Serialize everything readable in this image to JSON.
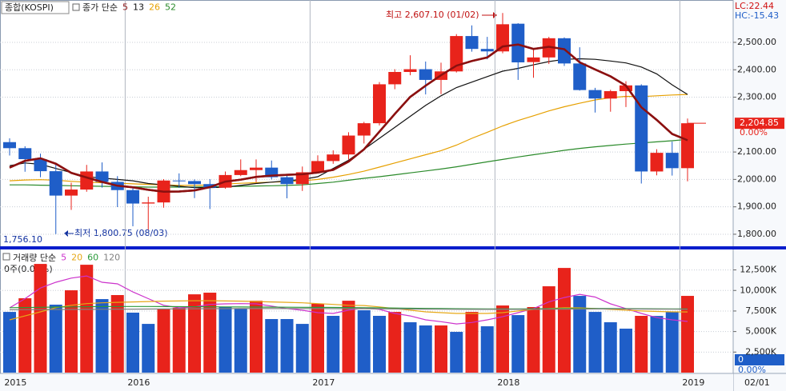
{
  "chart_data": [
    {
      "type": "candlestick",
      "title": "종합(KOSPI)",
      "ma_label": "종가 단순",
      "lc_label": "LC:22.44",
      "hc_label": "HC:-15.43",
      "high_annotation": "최고 2,607.10 (01/02)",
      "low_annotation": "최저 1,800.75 (08/03)",
      "axis_min_label": "1,756.10",
      "current_label": "2,204.85",
      "change_label": "0.00%",
      "categories": [
        "2015",
        null,
        null,
        null,
        null,
        null,
        null,
        null,
        "2016",
        null,
        null,
        null,
        null,
        null,
        null,
        null,
        null,
        null,
        null,
        null,
        "2017",
        null,
        null,
        null,
        null,
        null,
        null,
        null,
        null,
        null,
        null,
        null,
        "2018",
        null,
        null,
        null,
        null,
        null,
        null,
        null,
        null,
        null,
        null,
        null,
        "2019"
      ],
      "open": [
        2136,
        2114,
        2074,
        2030,
        1941,
        1963,
        2029,
        1991,
        1961,
        1912,
        1916,
        1996,
        1994,
        1983,
        1970,
        2016,
        2034,
        2043,
        2008,
        1983,
        2026,
        2067,
        2091,
        2160,
        2205,
        2347,
        2392,
        2402,
        2363,
        2394,
        2523,
        2476,
        2467,
        2568,
        2428,
        2445,
        2515,
        2423,
        2326,
        2295,
        2322,
        2343,
        2029,
        2097,
        2041
      ],
      "high": [
        2150,
        2121,
        2094,
        2055,
        1988,
        2053,
        2062,
        2012,
        1971,
        1937,
        2001,
        2022,
        2000,
        2001,
        2029,
        2073,
        2073,
        2069,
        2015,
        2047,
        2088,
        2106,
        2172,
        2210,
        2355,
        2402,
        2453,
        2430,
        2426,
        2530,
        2562,
        2520,
        2607.1,
        2570,
        2476,
        2520,
        2518,
        2482,
        2334,
        2327,
        2358,
        2347,
        2110,
        2138,
        2222
      ],
      "low": [
        2087,
        2028,
        2008,
        1800.75,
        1889,
        1955,
        1970,
        1899,
        1829,
        1817,
        1897,
        1969,
        1932,
        1892,
        1966,
        2012,
        1990,
        2000,
        1931,
        1958,
        2024,
        2057,
        2073,
        2131,
        2197,
        2329,
        2380,
        2310,
        2311,
        2390,
        2466,
        2438,
        2460,
        2363,
        2371,
        2421,
        2414,
        2324,
        2244,
        2247,
        2264,
        1985,
        2015,
        2014,
        1993
      ],
      "close": [
        2114,
        2074,
        2030,
        1941,
        1963,
        2029,
        1991,
        1961,
        1912,
        1916,
        1996,
        1994,
        1983,
        1970,
        2016,
        2034,
        2043,
        2008,
        1983,
        2026,
        2067,
        2091,
        2160,
        2205,
        2347,
        2392,
        2402,
        2363,
        2394,
        2523,
        2476,
        2467,
        2566,
        2427,
        2445,
        2515,
        2423,
        2326,
        2295,
        2322,
        2343,
        2029,
        2097,
        2041,
        2204.85
      ],
      "up_color": "#e8231b",
      "down_color": "#1f5ec8",
      "series": [
        {
          "name": "5",
          "color": "#8b1010",
          "values": [
            2043,
            2068,
            2077,
            2057,
            2024,
            2007,
            1991,
            1977,
            1971,
            1962,
            1955,
            1956,
            1960,
            1972,
            1992,
            1999,
            2009,
            2014,
            2017,
            2019,
            2025,
            2035,
            2065,
            2110,
            2174,
            2239,
            2301,
            2342,
            2380,
            2415,
            2432,
            2445,
            2485,
            2492,
            2476,
            2484,
            2475,
            2427,
            2401,
            2376,
            2342,
            2263,
            2217,
            2166,
            2143
          ]
        },
        {
          "name": "13",
          "color": "#111111",
          "values": [
            2050,
            2060,
            2055,
            2040,
            2025,
            2010,
            2005,
            2000,
            1995,
            1985,
            1980,
            1975,
            1970,
            1970,
            1972,
            1978,
            1985,
            1990,
            1995,
            2000,
            2010,
            2040,
            2070,
            2110,
            2150,
            2190,
            2230,
            2270,
            2305,
            2335,
            2355,
            2375,
            2395,
            2405,
            2418,
            2430,
            2438,
            2440,
            2438,
            2432,
            2425,
            2410,
            2385,
            2345,
            2310
          ]
        },
        {
          "name": "26",
          "color": "#e6a000",
          "values": [
            1995,
            1998,
            1999,
            1997,
            1993,
            1990,
            1988,
            1986,
            1984,
            1982,
            1980,
            1978,
            1978,
            1980,
            1983,
            1986,
            1988,
            1990,
            1992,
            1995,
            2000,
            2008,
            2018,
            2030,
            2045,
            2060,
            2075,
            2090,
            2105,
            2125,
            2150,
            2172,
            2195,
            2215,
            2232,
            2250,
            2265,
            2278,
            2290,
            2298,
            2303,
            2302,
            2305,
            2308,
            2310
          ]
        },
        {
          "name": "52",
          "color": "#2a8a2a",
          "values": [
            1980,
            1980,
            1979,
            1978,
            1977,
            1976,
            1975,
            1974,
            1973,
            1972,
            1972,
            1972,
            1972,
            1973,
            1974,
            1975,
            1976,
            1977,
            1978,
            1980,
            1985,
            1990,
            1997,
            2004,
            2010,
            2017,
            2024,
            2031,
            2038,
            2046,
            2055,
            2064,
            2073,
            2082,
            2090,
            2098,
            2106,
            2113,
            2119,
            2124,
            2129,
            2133,
            2137,
            2141,
            2146
          ]
        }
      ],
      "ylim": [
        1756.1,
        2654.5
      ],
      "yticks": [
        {
          "value": 1800,
          "label": "1,800.00"
        },
        {
          "value": 1900,
          "label": "1,900.00"
        },
        {
          "value": 2000,
          "label": "2,000.00"
        },
        {
          "value": 2100,
          "label": "2,100.00"
        },
        {
          "value": 2300,
          "label": "2,300.00"
        },
        {
          "value": 2400,
          "label": "2,400.00"
        },
        {
          "value": 2500,
          "label": "2,500.00"
        }
      ],
      "grid": true
    },
    {
      "type": "bar",
      "title": "거래량 단순",
      "subtitle": "0주(0.00%)",
      "current_label": "0",
      "change_label": "0.00%",
      "x_end_label": "02/01",
      "values": [
        7390,
        9050,
        13230,
        8270,
        10020,
        13130,
        8950,
        9440,
        7300,
        5930,
        7690,
        7880,
        9530,
        9730,
        7980,
        7780,
        8750,
        6520,
        6520,
        5930,
        8370,
        6910,
        8750,
        7590,
        6910,
        7390,
        6130,
        5740,
        5740,
        4960,
        7390,
        5640,
        8170,
        7000,
        7980,
        10510,
        12740,
        9340,
        7390,
        6130,
        5350,
        6910,
        6900,
        7390,
        9340
      ],
      "bar_colors": [
        "#1f5ec8",
        "#e8231b",
        "#e8231b",
        "#1f5ec8",
        "#e8231b",
        "#e8231b",
        "#1f5ec8",
        "#e8231b",
        "#1f5ec8",
        "#1f5ec8",
        "#e8231b",
        "#e8231b",
        "#e8231b",
        "#e8231b",
        "#1f5ec8",
        "#1f5ec8",
        "#e8231b",
        "#1f5ec8",
        "#1f5ec8",
        "#1f5ec8",
        "#e8231b",
        "#1f5ec8",
        "#e8231b",
        "#1f5ec8",
        "#1f5ec8",
        "#e8231b",
        "#1f5ec8",
        "#1f5ec8",
        "#e8231b",
        "#1f5ec8",
        "#e8231b",
        "#1f5ec8",
        "#e8231b",
        "#1f5ec8",
        "#e8231b",
        "#e8231b",
        "#e8231b",
        "#1f5ec8",
        "#1f5ec8",
        "#1f5ec8",
        "#1f5ec8",
        "#e8231b",
        "#1f5ec8",
        "#1f5ec8",
        "#e8231b"
      ],
      "series": [
        {
          "name": "5",
          "color": "#cc33cc",
          "values": [
            7880,
            9000,
            10300,
            11000,
            11500,
            11770,
            11000,
            10800,
            9820,
            9000,
            8200,
            7880,
            8000,
            8300,
            8370,
            8400,
            8370,
            8100,
            7800,
            7590,
            7300,
            7200,
            7600,
            7880,
            7700,
            7200,
            6900,
            6420,
            6200,
            5930,
            6100,
            6420,
            6800,
            7300,
            7800,
            8600,
            9140,
            9530,
            9200,
            8370,
            7800,
            7200,
            6700,
            6420,
            6230
          ]
        },
        {
          "name": "20",
          "color": "#e6a817",
          "values": [
            6420,
            6900,
            7400,
            7900,
            8200,
            8400,
            8500,
            8560,
            8600,
            8650,
            8700,
            8720,
            8750,
            8750,
            8720,
            8700,
            8650,
            8600,
            8560,
            8500,
            8400,
            8300,
            8200,
            8170,
            8000,
            7800,
            7600,
            7400,
            7300,
            7200,
            7200,
            7200,
            7300,
            7500,
            7700,
            7800,
            7900,
            7880,
            7800,
            7700,
            7600,
            7500,
            7450,
            7400,
            7390
          ]
        },
        {
          "name": "60",
          "color": "#2a9a3a",
          "values": [
            7900,
            7920,
            7950,
            7980,
            8000,
            8020,
            8040,
            8050,
            8050,
            8050,
            8040,
            8030,
            8020,
            8010,
            8000,
            7990,
            7980,
            7970,
            7960,
            7950,
            7940,
            7930,
            7920,
            7900,
            7880,
            7860,
            7840,
            7820,
            7800,
            7780,
            7770,
            7760,
            7760,
            7760,
            7770,
            7780,
            7790,
            7800,
            7800,
            7800,
            7790,
            7780,
            7770,
            7760,
            7750
          ]
        },
        {
          "name": "120",
          "color": "#808080",
          "values": [
            7650,
            7660,
            7670,
            7680,
            7690,
            7700,
            7710,
            7720,
            7730,
            7740,
            7750,
            7760,
            7770,
            7780,
            7790,
            7800,
            7800,
            7800,
            7800,
            7800,
            7800,
            7790,
            7780,
            7770,
            7760,
            7750,
            7740,
            7730,
            7720,
            7710,
            7700,
            7700,
            7700,
            7700,
            7710,
            7720,
            7730,
            7740,
            7750,
            7750,
            7750,
            7740,
            7730,
            7720,
            7710
          ]
        }
      ],
      "ylim": [
        0,
        14600
      ],
      "yticks": [
        {
          "value": 2500,
          "label": "2,500K"
        },
        {
          "value": 5000,
          "label": "5,000K"
        },
        {
          "value": 7500,
          "label": "7,500K"
        },
        {
          "value": 10000,
          "label": "10,000K"
        },
        {
          "value": 12500,
          "label": "12,500K"
        }
      ],
      "grid": true
    }
  ]
}
